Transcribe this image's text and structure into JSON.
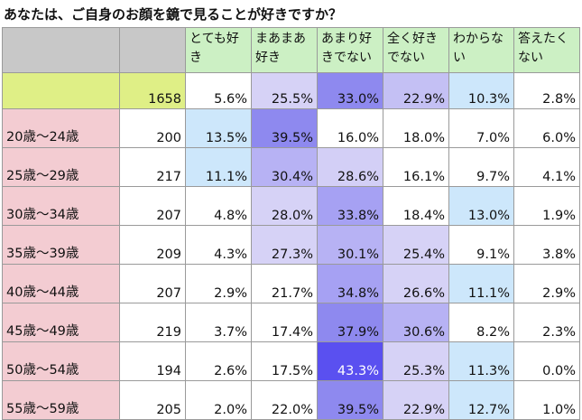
{
  "title": "あなたは、ご自身のお顔を鏡で見ることが好きですか？",
  "columns": [
    "とても好き",
    "まあまあ好き",
    "あまり好きでない",
    "全く好きでない",
    "わからない",
    "答えたくない"
  ],
  "total": {
    "count": "1658",
    "values": [
      "5.6%",
      "25.5%",
      "33.0%",
      "22.9%",
      "10.3%",
      "2.8%"
    ]
  },
  "rows": [
    {
      "label": "20歳～24歳",
      "count": "200",
      "values": [
        "13.5%",
        "39.5%",
        "16.0%",
        "18.0%",
        "7.0%",
        "6.0%"
      ]
    },
    {
      "label": "25歳～29歳",
      "count": "217",
      "values": [
        "11.1%",
        "30.4%",
        "28.6%",
        "16.1%",
        "9.7%",
        "4.1%"
      ]
    },
    {
      "label": "30歳～34歳",
      "count": "207",
      "values": [
        "4.8%",
        "28.0%",
        "33.8%",
        "18.4%",
        "13.0%",
        "1.9%"
      ]
    },
    {
      "label": "35歳～39歳",
      "count": "209",
      "values": [
        "4.3%",
        "27.3%",
        "30.1%",
        "25.4%",
        "9.1%",
        "3.8%"
      ]
    },
    {
      "label": "40歳～44歳",
      "count": "207",
      "values": [
        "2.9%",
        "21.7%",
        "34.8%",
        "26.6%",
        "11.1%",
        "2.9%"
      ]
    },
    {
      "label": "45歳～49歳",
      "count": "219",
      "values": [
        "3.7%",
        "17.4%",
        "37.9%",
        "30.6%",
        "8.2%",
        "2.3%"
      ]
    },
    {
      "label": "50歳～54歳",
      "count": "194",
      "values": [
        "2.6%",
        "17.5%",
        "43.3%",
        "25.3%",
        "11.3%",
        "0.0%"
      ]
    },
    {
      "label": "55歳～59歳",
      "count": "205",
      "values": [
        "2.0%",
        "22.0%",
        "39.5%",
        "22.9%",
        "12.7%",
        "1.0%"
      ]
    }
  ],
  "colors": {
    "header_bg": "#ccf0c4",
    "total_row_bg": "#dfef86",
    "age_label_bg": "#f3ccd2",
    "corner_bg": "#c8c8c8",
    "heat_low_light_blue": "#cde7fb",
    "heat_high_purple": "#5a50f0"
  },
  "cell_fills": [
    [
      "#ffffff",
      "#d6d2f6",
      "#8e89ef",
      "#c4c0f4",
      "#cde7fb",
      "#ffffff"
    ],
    [
      "#cde7fb",
      "#8e89ef",
      "#ffffff",
      "#ffffff",
      "#ffffff",
      "#ffffff"
    ],
    [
      "#cde7fb",
      "#b7b2f4",
      "#d3cff6",
      "#ffffff",
      "#ffffff",
      "#ffffff"
    ],
    [
      "#ffffff",
      "#d6d2f6",
      "#a6a1f3",
      "#ffffff",
      "#cde7fb",
      "#ffffff"
    ],
    [
      "#ffffff",
      "#d6d2f6",
      "#b7b2f4",
      "#d6d2f6",
      "#ffffff",
      "#ffffff"
    ],
    [
      "#ffffff",
      "#ffffff",
      "#a6a1f3",
      "#d6d2f6",
      "#cde7fb",
      "#ffffff"
    ],
    [
      "#ffffff",
      "#ffffff",
      "#8e89ef",
      "#b7b2f4",
      "#ffffff",
      "#ffffff"
    ],
    [
      "#ffffff",
      "#ffffff",
      "#5a50f0",
      "#d6d2f6",
      "#cde7fb",
      "#ffffff"
    ],
    [
      "#ffffff",
      "#ffffff",
      "#8e89ef",
      "#d6d2f6",
      "#cde7fb",
      "#ffffff"
    ]
  ]
}
